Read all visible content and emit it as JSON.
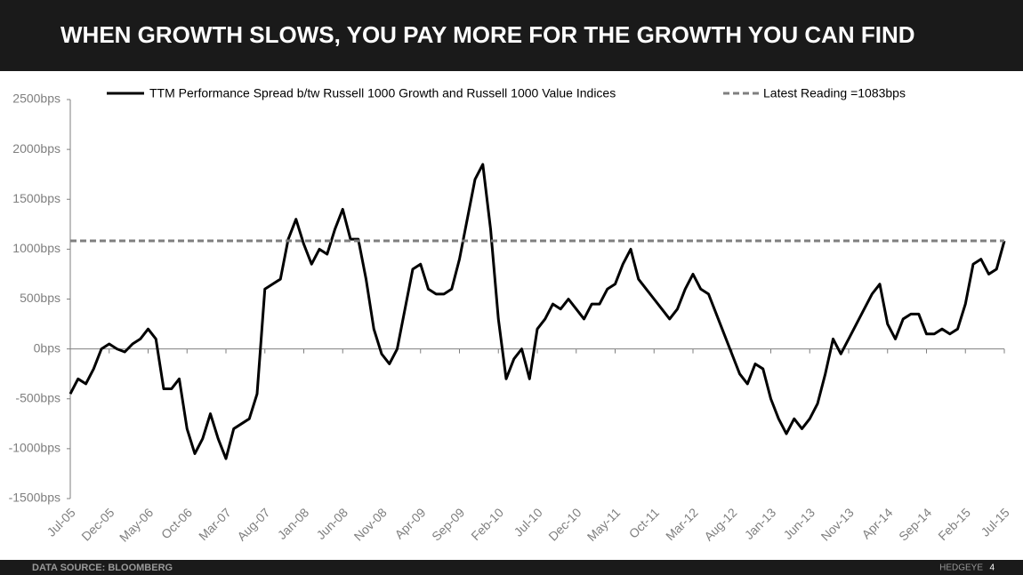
{
  "header": {
    "title": "WHEN GROWTH SLOWS, YOU PAY MORE FOR THE GROWTH YOU CAN FIND"
  },
  "footer": {
    "source": "DATA SOURCE: BLOOMBERG",
    "brand": "HEDGEYE",
    "page": "4"
  },
  "chart_data": {
    "type": "line",
    "x": [
      "Jul-05",
      "Aug-05",
      "Sep-05",
      "Oct-05",
      "Nov-05",
      "Dec-05",
      "Jan-06",
      "Feb-06",
      "Mar-06",
      "Apr-06",
      "May-06",
      "Jun-06",
      "Jul-06",
      "Aug-06",
      "Sep-06",
      "Oct-06",
      "Nov-06",
      "Dec-06",
      "Jan-07",
      "Feb-07",
      "Mar-07",
      "Apr-07",
      "May-07",
      "Jun-07",
      "Jul-07",
      "Aug-07",
      "Sep-07",
      "Oct-07",
      "Nov-07",
      "Dec-07",
      "Jan-08",
      "Feb-08",
      "Mar-08",
      "Apr-08",
      "May-08",
      "Jun-08",
      "Jul-08",
      "Aug-08",
      "Sep-08",
      "Oct-08",
      "Nov-08",
      "Dec-08",
      "Jan-09",
      "Feb-09",
      "Mar-09",
      "Apr-09",
      "May-09",
      "Jun-09",
      "Jul-09",
      "Aug-09",
      "Sep-09",
      "Oct-09",
      "Nov-09",
      "Dec-09",
      "Jan-10",
      "Feb-10",
      "Mar-10",
      "Apr-10",
      "May-10",
      "Jun-10",
      "Jul-10",
      "Aug-10",
      "Sep-10",
      "Oct-10",
      "Nov-10",
      "Dec-10",
      "Jan-11",
      "Feb-11",
      "Mar-11",
      "Apr-11",
      "May-11",
      "Jun-11",
      "Jul-11",
      "Aug-11",
      "Sep-11",
      "Oct-11",
      "Nov-11",
      "Dec-11",
      "Jan-12",
      "Feb-12",
      "Mar-12",
      "Apr-12",
      "May-12",
      "Jun-12",
      "Jul-12",
      "Aug-12",
      "Sep-12",
      "Oct-12",
      "Nov-12",
      "Dec-12",
      "Jan-13",
      "Feb-13",
      "Mar-13",
      "Apr-13",
      "May-13",
      "Jun-13",
      "Jul-13",
      "Aug-13",
      "Sep-13",
      "Oct-13",
      "Nov-13",
      "Dec-13",
      "Jan-14",
      "Feb-14",
      "Mar-14",
      "Apr-14",
      "May-14",
      "Jun-14",
      "Jul-14",
      "Aug-14",
      "Sep-14",
      "Oct-14",
      "Nov-14",
      "Dec-14",
      "Jan-15",
      "Feb-15",
      "Mar-15",
      "Apr-15",
      "May-15",
      "Jun-15",
      "Jul-15"
    ],
    "xticks": [
      "Jul-05",
      "Dec-05",
      "May-06",
      "Oct-06",
      "Mar-07",
      "Aug-07",
      "Jan-08",
      "Jun-08",
      "Nov-08",
      "Apr-09",
      "Sep-09",
      "Feb-10",
      "Jul-10",
      "Dec-10",
      "May-11",
      "Oct-11",
      "Mar-12",
      "Aug-12",
      "Jan-13",
      "Jun-13",
      "Nov-13",
      "Apr-14",
      "Sep-14",
      "Feb-15",
      "Jul-15"
    ],
    "series": [
      {
        "name": "TTM Performance Spread  b/tw Russell 1000 Growth and Russell 1000 Value Indices",
        "color": "#000000",
        "values": [
          -450,
          -300,
          -350,
          -200,
          0,
          50,
          0,
          -30,
          50,
          100,
          200,
          100,
          -400,
          -400,
          -300,
          -800,
          -1050,
          -900,
          -650,
          -900,
          -1100,
          -800,
          -750,
          -700,
          -450,
          600,
          650,
          700,
          1100,
          1300,
          1050,
          850,
          1000,
          950,
          1200,
          1400,
          1100,
          1100,
          700,
          200,
          -50,
          -150,
          0,
          400,
          800,
          850,
          600,
          550,
          550,
          600,
          900,
          1300,
          1700,
          1850,
          1200,
          300,
          -300,
          -100,
          0,
          -300,
          200,
          300,
          450,
          400,
          500,
          400,
          300,
          450,
          450,
          600,
          650,
          850,
          1000,
          700,
          600,
          500,
          400,
          300,
          400,
          600,
          750,
          600,
          550,
          350,
          150,
          -50,
          -250,
          -350,
          -150,
          -200,
          -500,
          -700,
          -850,
          -700,
          -800,
          -700,
          -550,
          -250,
          100,
          -50,
          100,
          250,
          400,
          550,
          650,
          250,
          100,
          300,
          350,
          350,
          150,
          150,
          200,
          150,
          200,
          450,
          850,
          900,
          750,
          800,
          1083
        ]
      }
    ],
    "reference_line": {
      "name": "Latest Reading =1083bps",
      "value": 1083,
      "color": "#7f7f7f",
      "dashed": true
    },
    "ylim": [
      -1500,
      2500
    ],
    "yticks": [
      {
        "value": -1500,
        "label": "-1500bps"
      },
      {
        "value": -1000,
        "label": "-1000bps"
      },
      {
        "value": -500,
        "label": "-500bps"
      },
      {
        "value": 0,
        "label": "0bps"
      },
      {
        "value": 500,
        "label": "500bps"
      },
      {
        "value": 1000,
        "label": "1000bps"
      },
      {
        "value": 1500,
        "label": "1500bps"
      },
      {
        "value": 2000,
        "label": "2000bps"
      },
      {
        "value": 2500,
        "label": "2500bps"
      }
    ]
  }
}
